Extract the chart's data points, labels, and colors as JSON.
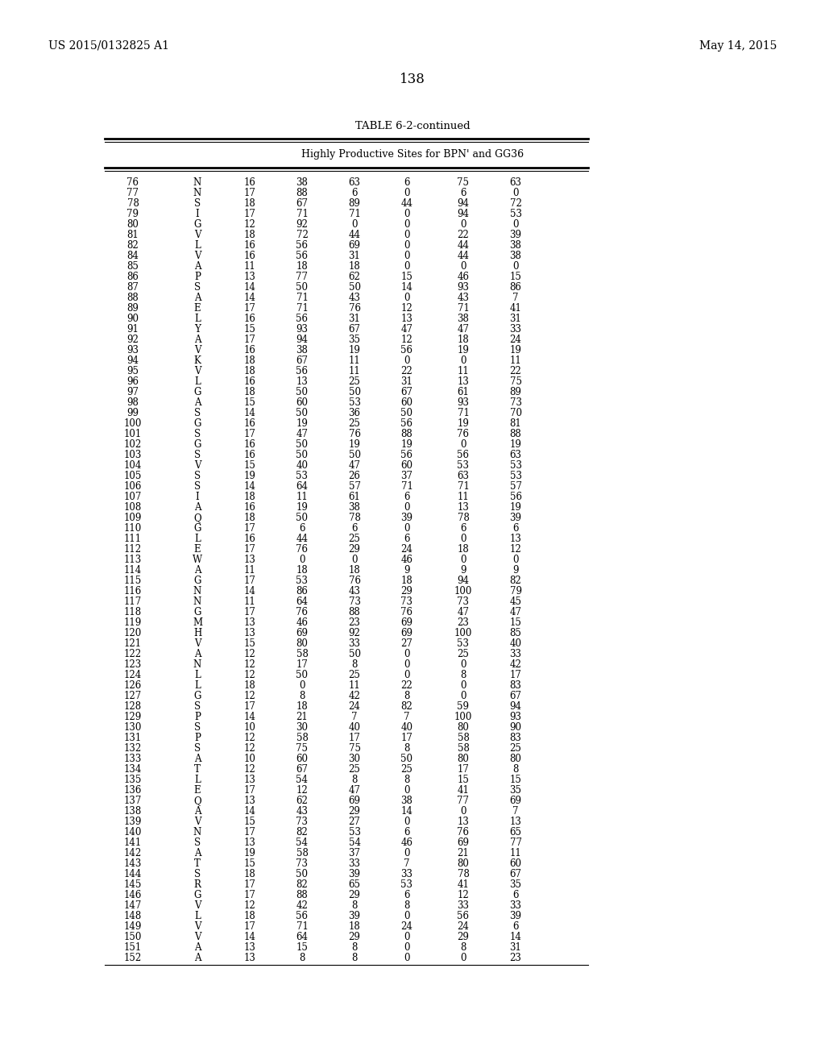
{
  "header_left": "US 2015/0132825 A1",
  "header_right": "May 14, 2015",
  "page_number": "138",
  "table_title": "TABLE 6-2-continued",
  "table_subtitle": "Highly Productive Sites for BPN' and GG36",
  "columns": [
    "",
    "",
    "",
    "",
    "",
    "",
    "",
    ""
  ],
  "rows": [
    [
      76,
      "N",
      16,
      38,
      63,
      6,
      75,
      63
    ],
    [
      77,
      "N",
      17,
      88,
      6,
      0,
      6,
      0
    ],
    [
      78,
      "S",
      18,
      67,
      89,
      44,
      94,
      72
    ],
    [
      79,
      "I",
      17,
      71,
      71,
      0,
      94,
      53
    ],
    [
      80,
      "G",
      12,
      92,
      0,
      0,
      0,
      0
    ],
    [
      81,
      "V",
      18,
      72,
      44,
      0,
      22,
      39
    ],
    [
      82,
      "L",
      16,
      56,
      69,
      0,
      44,
      38
    ],
    [
      84,
      "V",
      16,
      56,
      31,
      0,
      44,
      38
    ],
    [
      85,
      "A",
      11,
      18,
      18,
      0,
      0,
      0
    ],
    [
      86,
      "P",
      13,
      77,
      62,
      15,
      46,
      15
    ],
    [
      87,
      "S",
      14,
      50,
      50,
      14,
      93,
      86
    ],
    [
      88,
      "A",
      14,
      71,
      43,
      0,
      43,
      7
    ],
    [
      89,
      "E",
      17,
      71,
      76,
      12,
      71,
      41
    ],
    [
      90,
      "L",
      16,
      56,
      31,
      13,
      38,
      31
    ],
    [
      91,
      "Y",
      15,
      93,
      67,
      47,
      47,
      33
    ],
    [
      92,
      "A",
      17,
      94,
      35,
      12,
      18,
      24
    ],
    [
      93,
      "V",
      16,
      38,
      19,
      56,
      19,
      19
    ],
    [
      94,
      "K",
      18,
      67,
      11,
      0,
      0,
      11
    ],
    [
      95,
      "V",
      18,
      56,
      11,
      22,
      11,
      22
    ],
    [
      96,
      "L",
      16,
      13,
      25,
      31,
      13,
      75
    ],
    [
      97,
      "G",
      18,
      50,
      50,
      67,
      61,
      89
    ],
    [
      98,
      "A",
      15,
      60,
      53,
      60,
      93,
      73
    ],
    [
      99,
      "S",
      14,
      50,
      36,
      50,
      71,
      70
    ],
    [
      100,
      "G",
      16,
      19,
      25,
      56,
      19,
      81
    ],
    [
      101,
      "S",
      17,
      47,
      76,
      88,
      76,
      88
    ],
    [
      102,
      "G",
      16,
      50,
      19,
      19,
      0,
      19
    ],
    [
      103,
      "S",
      16,
      50,
      50,
      56,
      56,
      63
    ],
    [
      104,
      "V",
      15,
      40,
      47,
      60,
      53,
      53
    ],
    [
      105,
      "S",
      19,
      53,
      26,
      37,
      63,
      53
    ],
    [
      106,
      "S",
      14,
      64,
      57,
      71,
      71,
      57
    ],
    [
      107,
      "I",
      18,
      11,
      61,
      6,
      11,
      56
    ],
    [
      108,
      "A",
      16,
      19,
      38,
      0,
      13,
      19
    ],
    [
      109,
      "Q",
      18,
      50,
      78,
      39,
      78,
      39
    ],
    [
      110,
      "G",
      17,
      6,
      6,
      0,
      6,
      6
    ],
    [
      111,
      "L",
      16,
      44,
      25,
      6,
      0,
      13
    ],
    [
      112,
      "E",
      17,
      76,
      29,
      24,
      18,
      12
    ],
    [
      113,
      "W",
      13,
      0,
      0,
      46,
      0,
      0
    ],
    [
      114,
      "A",
      11,
      18,
      18,
      9,
      9,
      9
    ],
    [
      115,
      "G",
      17,
      53,
      76,
      18,
      94,
      82
    ],
    [
      116,
      "N",
      14,
      86,
      43,
      29,
      100,
      79
    ],
    [
      117,
      "N",
      11,
      64,
      73,
      73,
      73,
      45
    ],
    [
      118,
      "G",
      17,
      76,
      88,
      76,
      47,
      47
    ],
    [
      119,
      "M",
      13,
      46,
      23,
      69,
      23,
      15
    ],
    [
      120,
      "H",
      13,
      69,
      92,
      69,
      100,
      85
    ],
    [
      121,
      "V",
      15,
      80,
      33,
      27,
      53,
      40
    ],
    [
      122,
      "A",
      12,
      58,
      50,
      0,
      25,
      33
    ],
    [
      123,
      "N",
      12,
      17,
      8,
      0,
      0,
      42
    ],
    [
      124,
      "L",
      12,
      50,
      25,
      0,
      8,
      17
    ],
    [
      126,
      "L",
      18,
      0,
      11,
      22,
      0,
      83
    ],
    [
      127,
      "G",
      12,
      8,
      42,
      8,
      0,
      67
    ],
    [
      128,
      "S",
      17,
      18,
      24,
      82,
      59,
      94
    ],
    [
      129,
      "P",
      14,
      21,
      7,
      7,
      100,
      93
    ],
    [
      130,
      "S",
      10,
      30,
      40,
      40,
      80,
      90
    ],
    [
      131,
      "P",
      12,
      58,
      17,
      17,
      58,
      83
    ],
    [
      132,
      "S",
      12,
      75,
      75,
      8,
      58,
      25
    ],
    [
      133,
      "A",
      10,
      60,
      30,
      50,
      80,
      80
    ],
    [
      134,
      "T",
      12,
      67,
      25,
      25,
      17,
      8
    ],
    [
      135,
      "L",
      13,
      54,
      8,
      8,
      15,
      15
    ],
    [
      136,
      "E",
      17,
      12,
      47,
      0,
      41,
      35
    ],
    [
      137,
      "Q",
      13,
      62,
      69,
      38,
      77,
      69
    ],
    [
      138,
      "A",
      14,
      43,
      29,
      14,
      0,
      7
    ],
    [
      139,
      "V",
      15,
      73,
      27,
      0,
      13,
      13
    ],
    [
      140,
      "N",
      17,
      82,
      53,
      6,
      76,
      65
    ],
    [
      141,
      "S",
      13,
      54,
      54,
      46,
      69,
      77
    ],
    [
      142,
      "A",
      19,
      58,
      37,
      0,
      21,
      11
    ],
    [
      143,
      "T",
      15,
      73,
      33,
      7,
      80,
      60
    ],
    [
      144,
      "S",
      18,
      50,
      39,
      33,
      78,
      67
    ],
    [
      145,
      "R",
      17,
      82,
      65,
      53,
      41,
      35
    ],
    [
      146,
      "G",
      17,
      88,
      29,
      6,
      12,
      6
    ],
    [
      147,
      "V",
      12,
      42,
      8,
      8,
      33,
      33
    ],
    [
      148,
      "L",
      18,
      56,
      39,
      0,
      56,
      39
    ],
    [
      149,
      "V",
      17,
      71,
      18,
      24,
      24,
      6
    ],
    [
      150,
      "V",
      14,
      64,
      29,
      0,
      29,
      14
    ],
    [
      151,
      "A",
      13,
      15,
      8,
      0,
      8,
      31
    ],
    [
      152,
      "A",
      13,
      8,
      8,
      0,
      0,
      23
    ]
  ],
  "bg_color": "#ffffff",
  "text_color": "#000000",
  "font_size": 8.5,
  "header_font_size": 9.5
}
